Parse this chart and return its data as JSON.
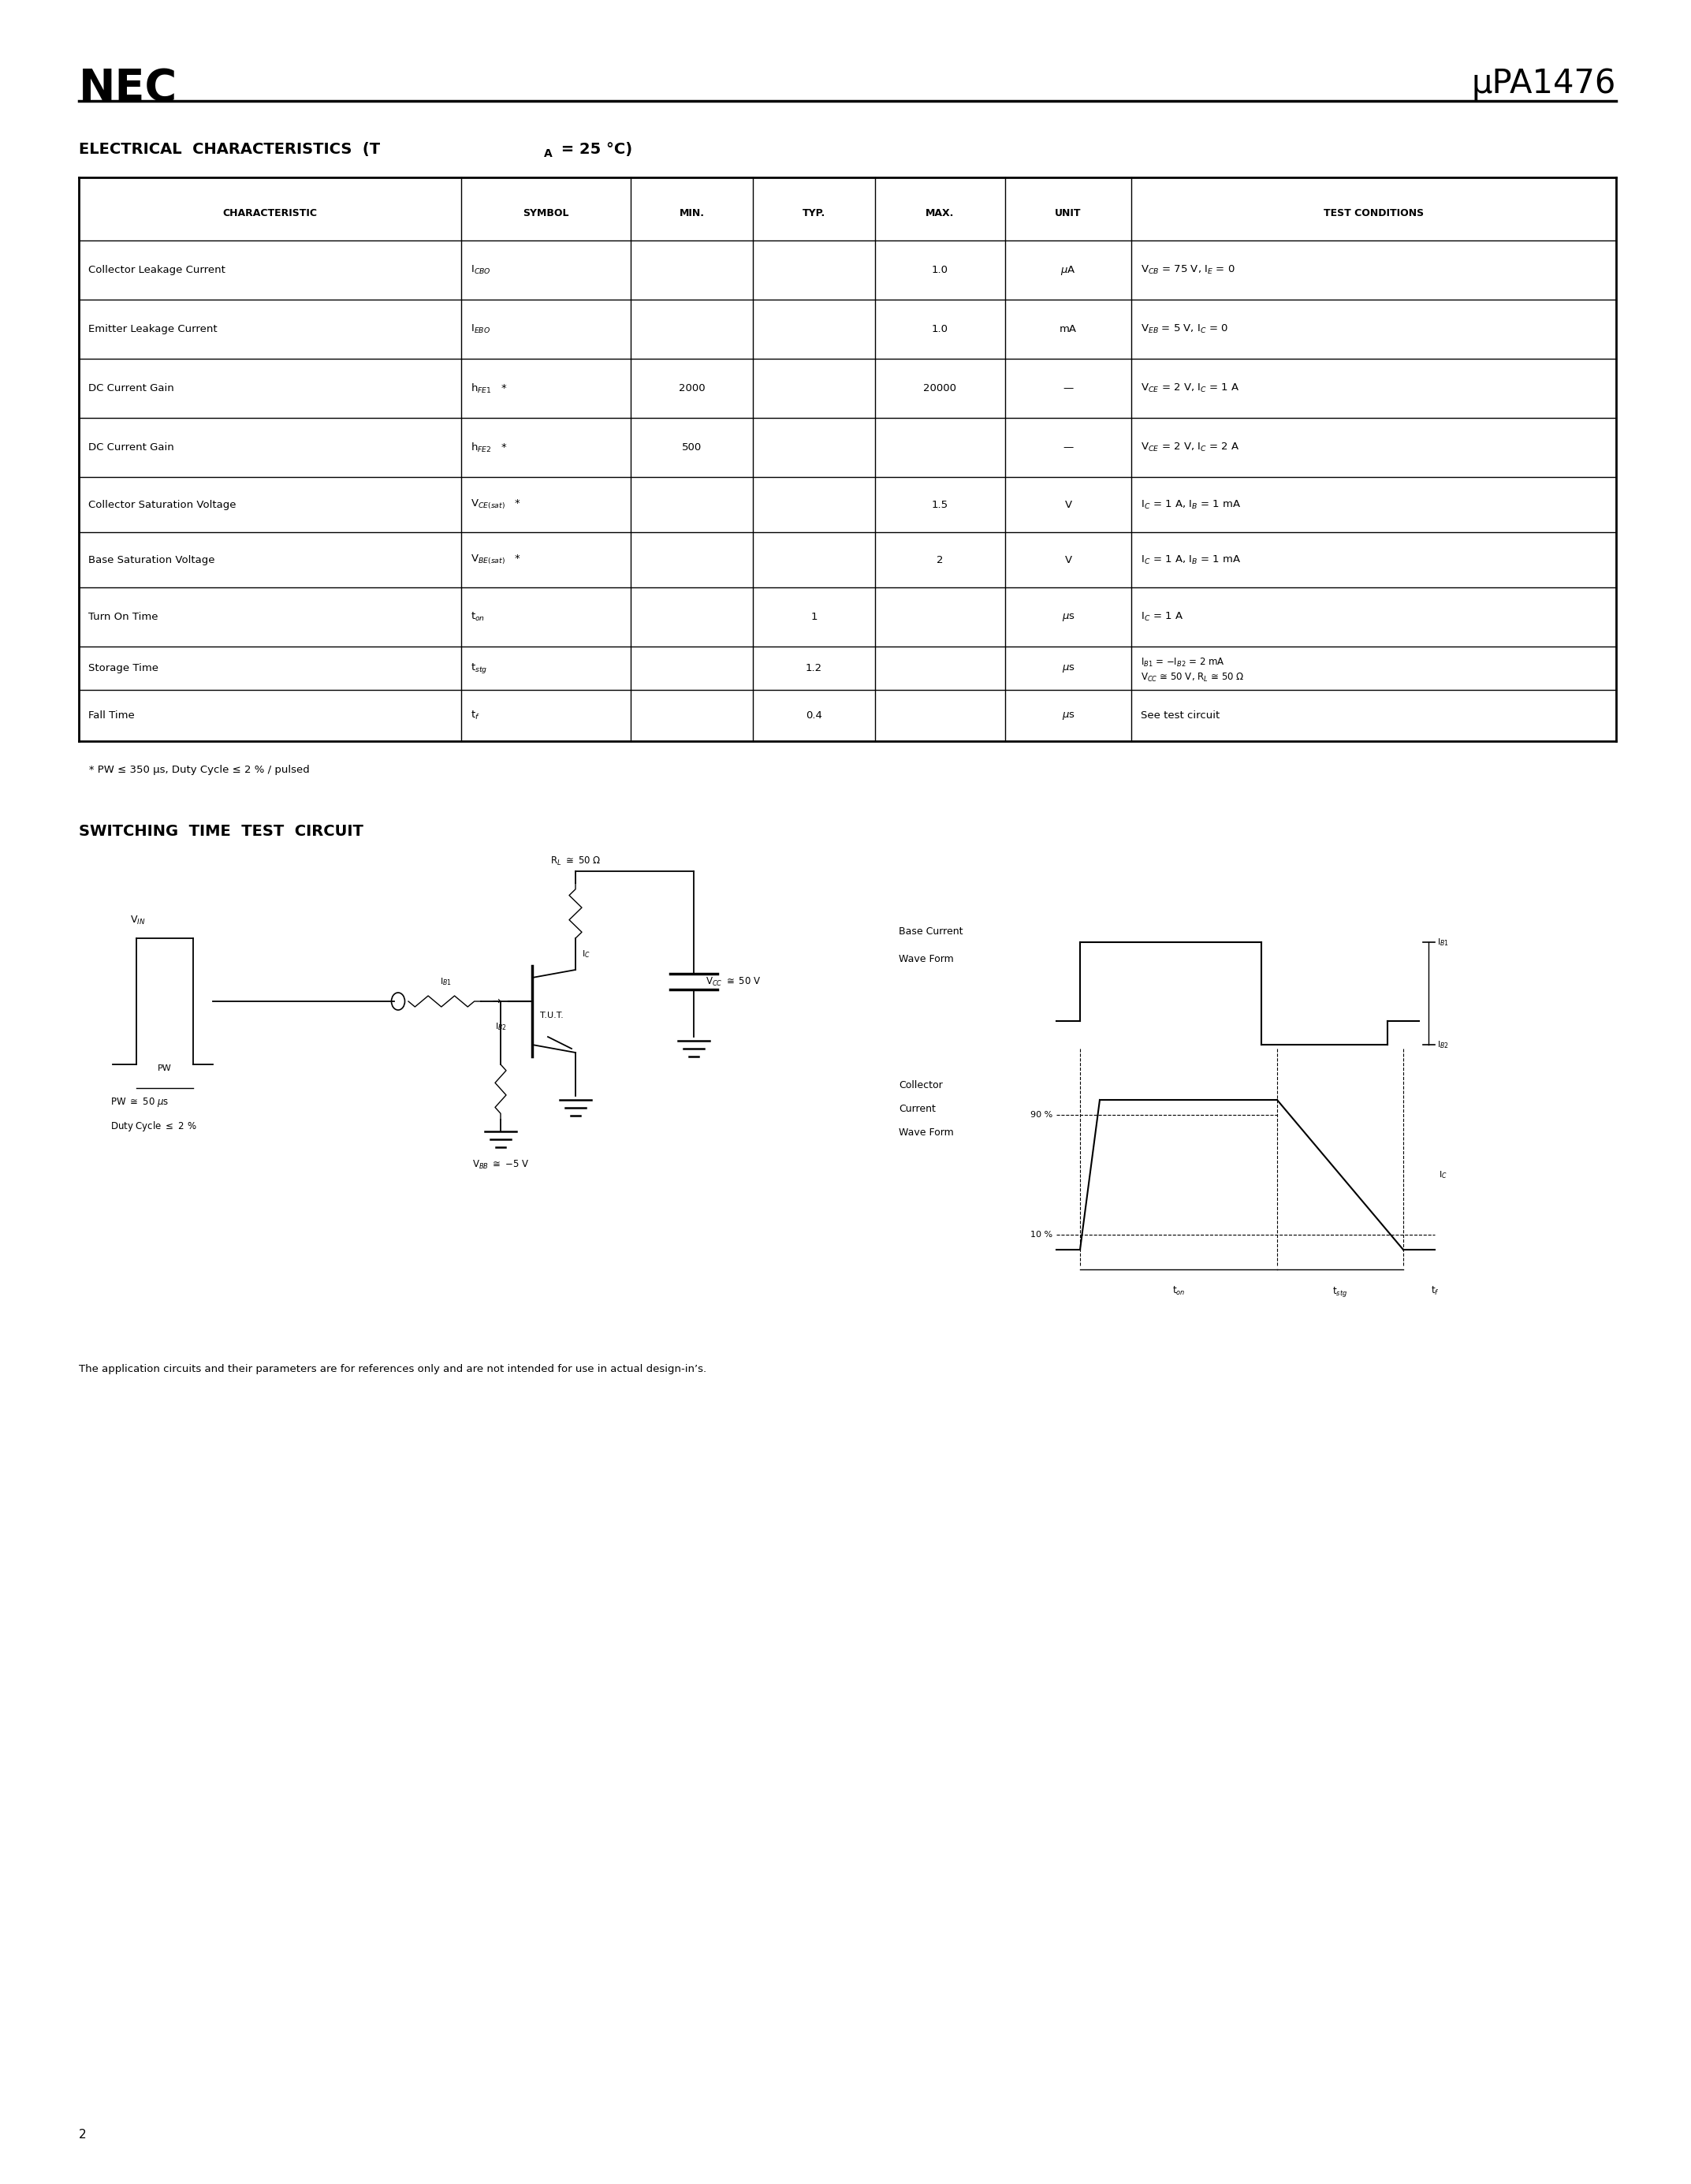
{
  "page_width": 21.25,
  "page_height": 27.5,
  "bg_color": "#ffffff",
  "nec_logo_text": "NEC",
  "part_number": "μPA1476",
  "section1_title": "ELECTRICAL  CHARACTERISTICS  (T",
  "section1_title_sub": "A",
  "section1_title_rest": " = 25 °C)",
  "table_headers": [
    "CHARACTERISTIC",
    "SYMBOL",
    "MIN.",
    "TYP.",
    "MAX.",
    "UNIT",
    "TEST CONDITIONS"
  ],
  "footnote": "   * PW ≤ 350 μs, Duty Cycle ≤ 2 % / pulsed",
  "section2_title": "SWITCHING  TIME  TEST  CIRCUIT",
  "disclaimer": "The application circuits and their parameters are for references only and are not intended for use in actual design-in’s.",
  "page_number": "2",
  "font_color": "#000000"
}
